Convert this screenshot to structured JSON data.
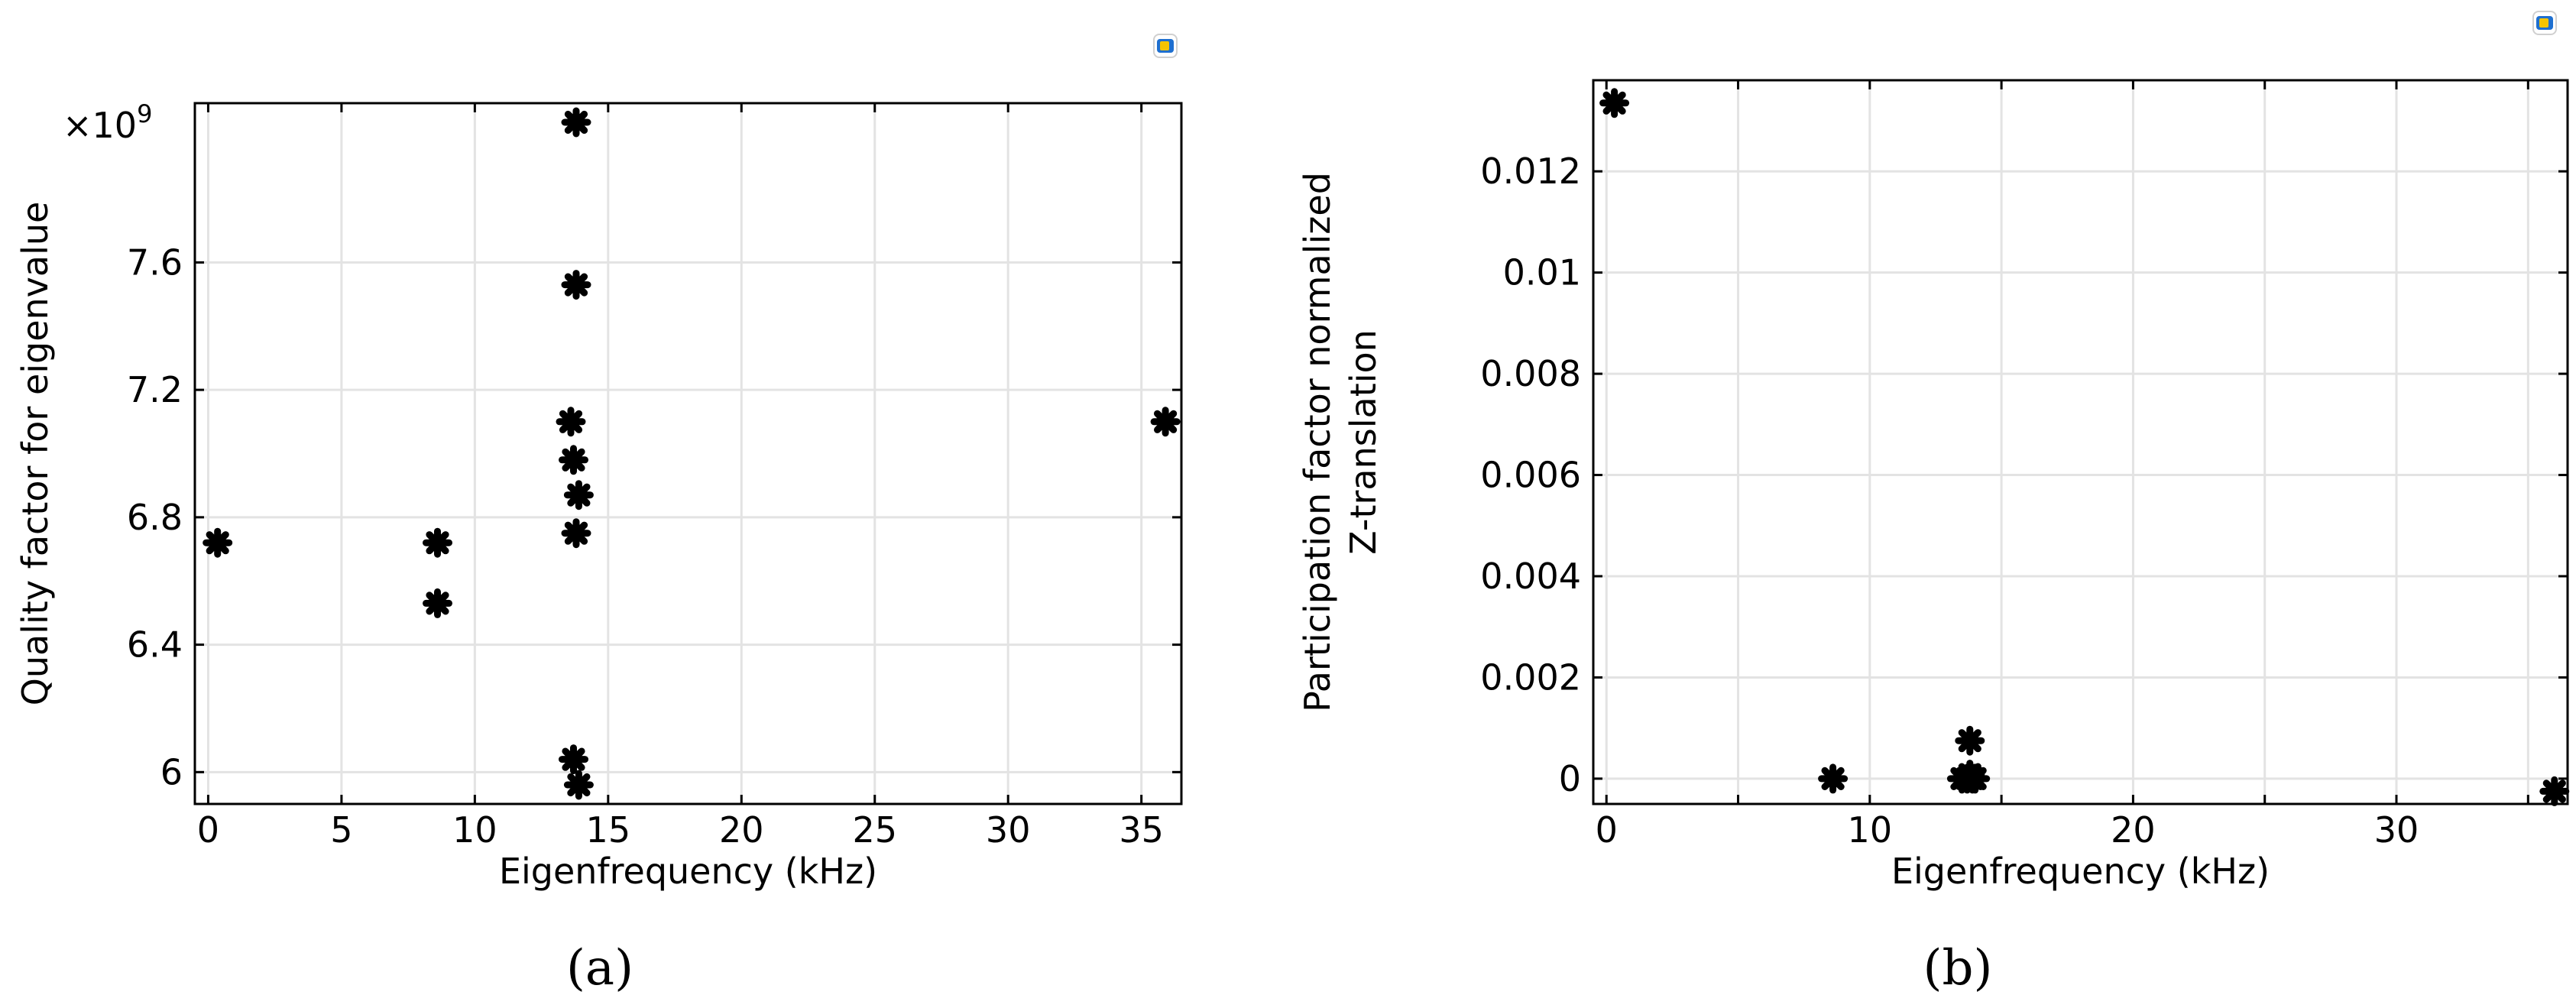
{
  "chart_data": [
    {
      "type": "scatter",
      "panel_label": "(a)",
      "title": "",
      "xlabel": "Eigenfrequency (kHz)",
      "ylabel": "Quality factor for eigenvalue",
      "y_multiplier_label": "×10",
      "y_multiplier_exp": "9",
      "xlim": [
        -0.5,
        36.5
      ],
      "ylim": [
        5.9,
        8.1
      ],
      "xticks": [
        0,
        5,
        10,
        15,
        20,
        25,
        30,
        35
      ],
      "xtick_labels": [
        "0",
        "5",
        "10",
        "15",
        "20",
        "25",
        "30",
        "35"
      ],
      "yticks": [
        6.0,
        6.4,
        6.8,
        7.2,
        7.6
      ],
      "ytick_labels": [
        "6",
        "6.4",
        "6.8",
        "7.2",
        "7.6"
      ],
      "grid": true,
      "marker": "asterisk",
      "points": [
        {
          "x": 0.35,
          "y": 6.72
        },
        {
          "x": 8.6,
          "y": 6.72
        },
        {
          "x": 8.6,
          "y": 6.53
        },
        {
          "x": 13.7,
          "y": 6.04
        },
        {
          "x": 13.9,
          "y": 5.96
        },
        {
          "x": 13.8,
          "y": 8.04
        },
        {
          "x": 13.8,
          "y": 7.53
        },
        {
          "x": 13.6,
          "y": 7.1
        },
        {
          "x": 13.7,
          "y": 6.98
        },
        {
          "x": 13.9,
          "y": 6.87
        },
        {
          "x": 13.8,
          "y": 6.75
        },
        {
          "x": 35.9,
          "y": 7.1
        }
      ]
    },
    {
      "type": "scatter",
      "panel_label": "(b)",
      "title": "",
      "xlabel": "Eigenfrequency (kHz)",
      "ylabel_lines": [
        "Participation factor normalized",
        "Z-translation"
      ],
      "xlim": [
        -0.5,
        36.5
      ],
      "ylim": [
        -0.0005,
        0.0138
      ],
      "xticks": [
        0,
        10,
        20,
        30
      ],
      "xtick_labels": [
        "0",
        "10",
        "20",
        "30"
      ],
      "xgrid": [
        0,
        5,
        10,
        15,
        20,
        25,
        30,
        35
      ],
      "yticks": [
        0,
        0.002,
        0.004,
        0.006,
        0.008,
        0.01,
        0.012
      ],
      "ytick_labels": [
        "0",
        "0.002",
        "0.004",
        "0.006",
        "0.008",
        "0.01",
        "0.012"
      ],
      "grid": true,
      "marker": "asterisk",
      "points": [
        {
          "x": 0.3,
          "y": 0.01335
        },
        {
          "x": 8.6,
          "y": 0.0
        },
        {
          "x": 13.5,
          "y": 0.0
        },
        {
          "x": 13.7,
          "y": 0.0
        },
        {
          "x": 13.9,
          "y": 0.0
        },
        {
          "x": 14.0,
          "y": 0.0
        },
        {
          "x": 13.8,
          "y": 0.00075
        },
        {
          "x": 13.8,
          "y": 8e-05
        },
        {
          "x": 36.0,
          "y": -0.00025
        }
      ]
    }
  ]
}
